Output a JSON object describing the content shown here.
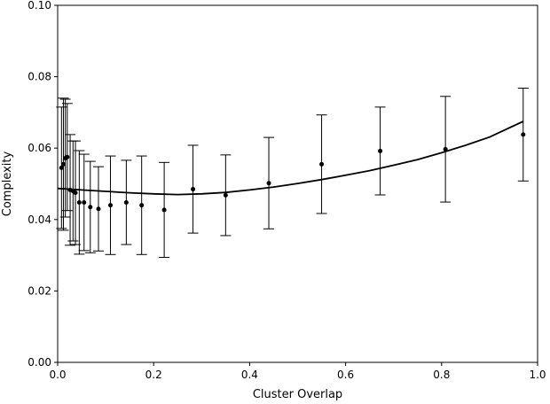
{
  "chart_data": {
    "type": "scatter",
    "title": "",
    "xlabel": "Cluster Overlap",
    "ylabel": "Complexity",
    "xlim": [
      0.0,
      1.0
    ],
    "ylim": [
      0.0,
      0.1
    ],
    "xticks": [
      "0.0",
      "0.2",
      "0.4",
      "0.6",
      "0.8",
      "1.0"
    ],
    "yticks": [
      "0.00",
      "0.02",
      "0.04",
      "0.06",
      "0.08",
      "0.10"
    ],
    "grid": false,
    "legend": "none",
    "colors": {
      "points": "#000000",
      "fit": "#000000",
      "errorbars": "#000000"
    },
    "series": [
      {
        "kind": "points-with-errorbars",
        "x": [
          0.008,
          0.012,
          0.016,
          0.02,
          0.026,
          0.032,
          0.037,
          0.045,
          0.055,
          0.068,
          0.085,
          0.11,
          0.143,
          0.175,
          0.222,
          0.282,
          0.35,
          0.44,
          0.55,
          0.672,
          0.808,
          0.97
        ],
        "y": [
          0.0545,
          0.0555,
          0.0572,
          0.0575,
          0.0483,
          0.048,
          0.0475,
          0.0448,
          0.0448,
          0.0435,
          0.043,
          0.044,
          0.0448,
          0.044,
          0.0427,
          0.0485,
          0.0468,
          0.0502,
          0.0555,
          0.0592,
          0.0597,
          0.0638
        ],
        "yerr": [
          0.017,
          0.0185,
          0.0165,
          0.015,
          0.0155,
          0.014,
          0.0145,
          0.0145,
          0.0135,
          0.0128,
          0.0118,
          0.0138,
          0.0118,
          0.0138,
          0.0133,
          0.0123,
          0.0113,
          0.0128,
          0.0138,
          0.0123,
          0.0148,
          0.013
        ]
      },
      {
        "kind": "fit-line",
        "x": [
          0.0,
          0.05,
          0.1,
          0.15,
          0.2,
          0.25,
          0.3,
          0.35,
          0.4,
          0.45,
          0.5,
          0.55,
          0.6,
          0.65,
          0.7,
          0.75,
          0.8,
          0.85,
          0.9,
          0.97
        ],
        "y": [
          0.0487,
          0.0483,
          0.0479,
          0.0475,
          0.0472,
          0.047,
          0.0472,
          0.0476,
          0.0483,
          0.0491,
          0.0501,
          0.0512,
          0.0524,
          0.0537,
          0.0552,
          0.0568,
          0.0587,
          0.0608,
          0.0631,
          0.0675
        ]
      }
    ]
  }
}
